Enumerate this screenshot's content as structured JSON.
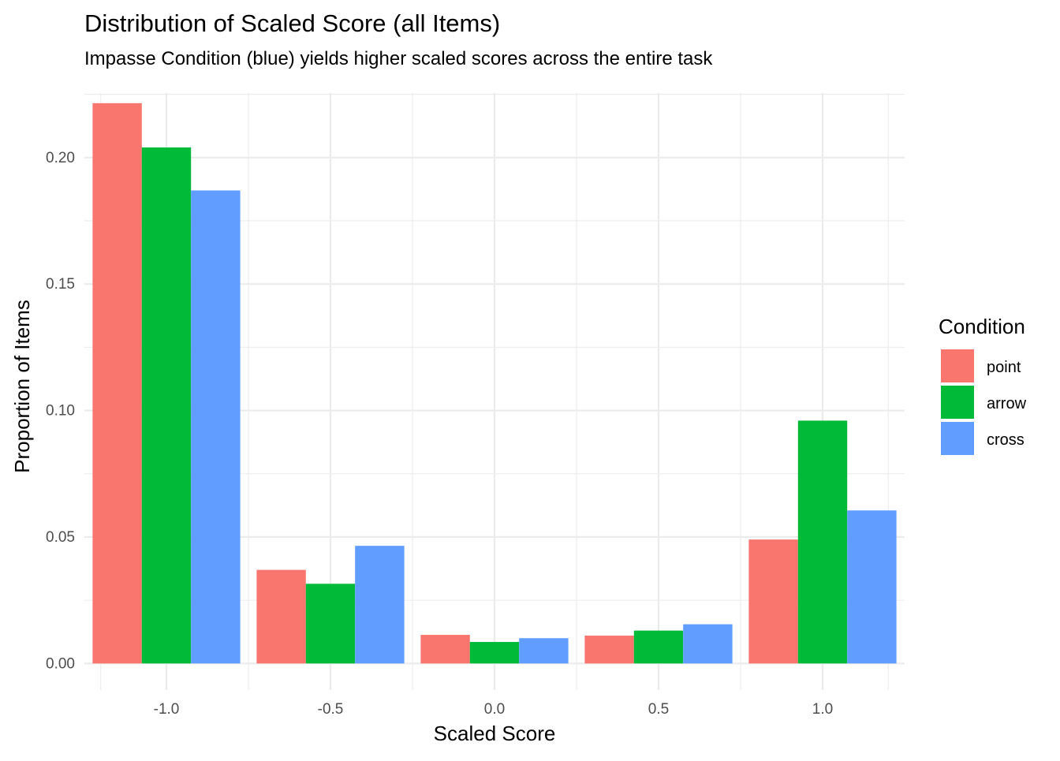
{
  "chart_data": {
    "type": "bar",
    "title": "Distribution of Scaled Score (all Items)",
    "subtitle": "Impasse Condition (blue) yields higher scaled scores across the entire task",
    "xlabel": "Scaled Score",
    "ylabel": "Proportion of Items",
    "categories": [
      "-1.0",
      "-0.5",
      "0.0",
      "0.5",
      "1.0"
    ],
    "x_values": [
      -1.0,
      -0.5,
      0.0,
      0.5,
      1.0
    ],
    "xlim": [
      -1.25,
      1.25
    ],
    "ylim": [
      -0.0105,
      0.2255
    ],
    "x_ticks": [
      -1.0,
      -0.5,
      0.0,
      0.5,
      1.0
    ],
    "x_tick_labels": [
      "-1.0",
      "-0.5",
      "0.0",
      "0.5",
      "1.0"
    ],
    "y_ticks": [
      0.0,
      0.05,
      0.1,
      0.15,
      0.2
    ],
    "y_tick_labels": [
      "0.00",
      "0.05",
      "0.10",
      "0.15",
      "0.20"
    ],
    "grid": true,
    "legend": {
      "title": "Condition",
      "position": "right"
    },
    "series": [
      {
        "name": "point",
        "color": "#F8766D",
        "values": [
          0.2215,
          0.037,
          0.0113,
          0.011,
          0.049
        ]
      },
      {
        "name": "arrow",
        "color": "#00BA38",
        "values": [
          0.204,
          0.0315,
          0.0085,
          0.013,
          0.096
        ]
      },
      {
        "name": "cross",
        "color": "#619CFF",
        "values": [
          0.187,
          0.0465,
          0.01,
          0.0155,
          0.0605
        ]
      }
    ]
  }
}
